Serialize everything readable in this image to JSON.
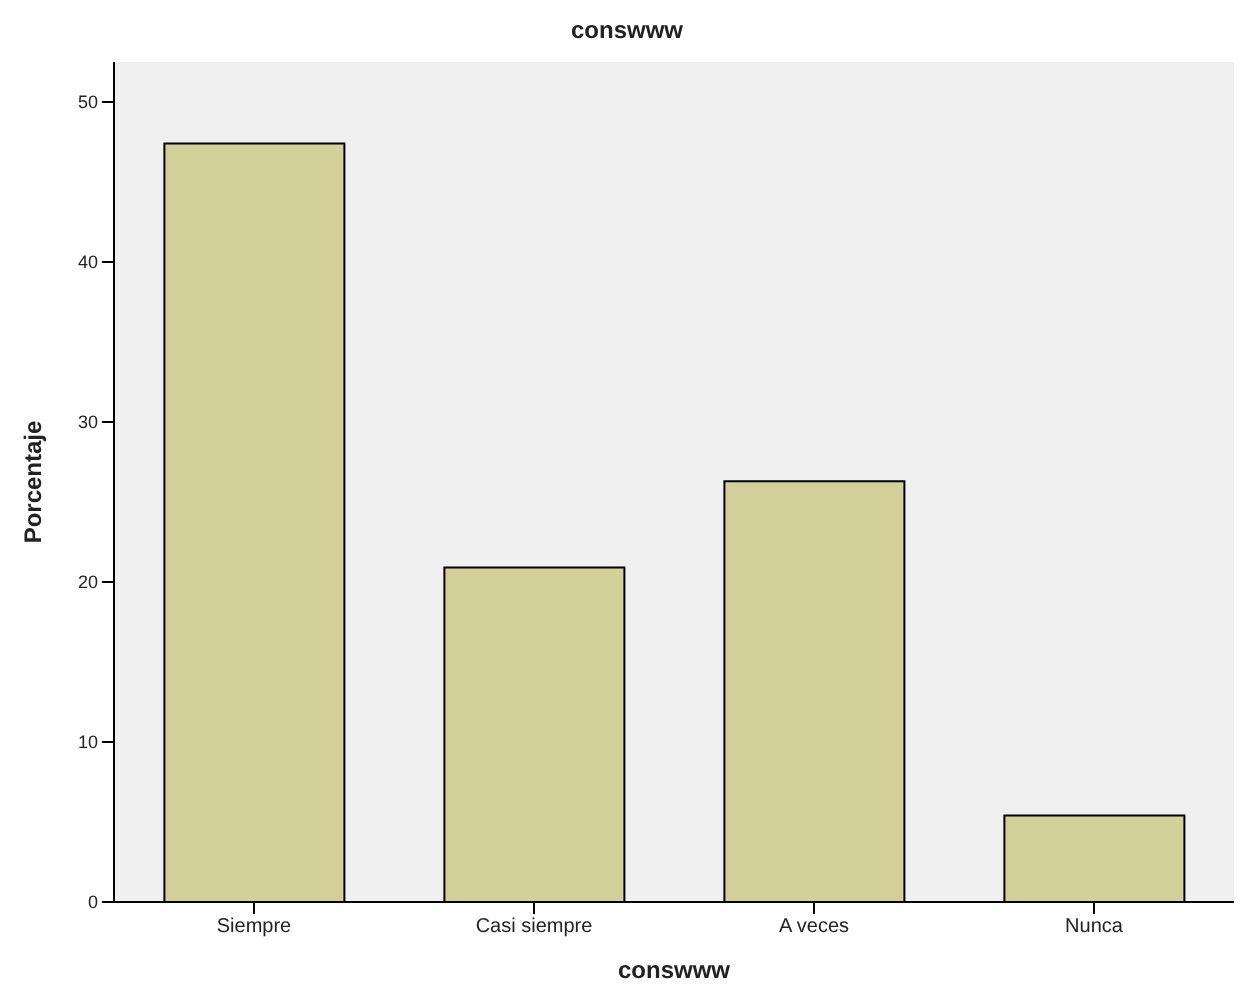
{
  "chart_data": {
    "type": "bar",
    "title": "conswww",
    "xlabel": "conswww",
    "ylabel": "Porcentaje",
    "categories": [
      "Siempre",
      "Casi siempre",
      "A veces",
      "Nunca"
    ],
    "values": [
      47.4,
      20.9,
      26.3,
      5.4
    ],
    "color": "#d3cf98",
    "ylim": [
      0,
      52.5
    ],
    "yticks": [
      0,
      10,
      20,
      30,
      40,
      50
    ],
    "grid": false
  }
}
